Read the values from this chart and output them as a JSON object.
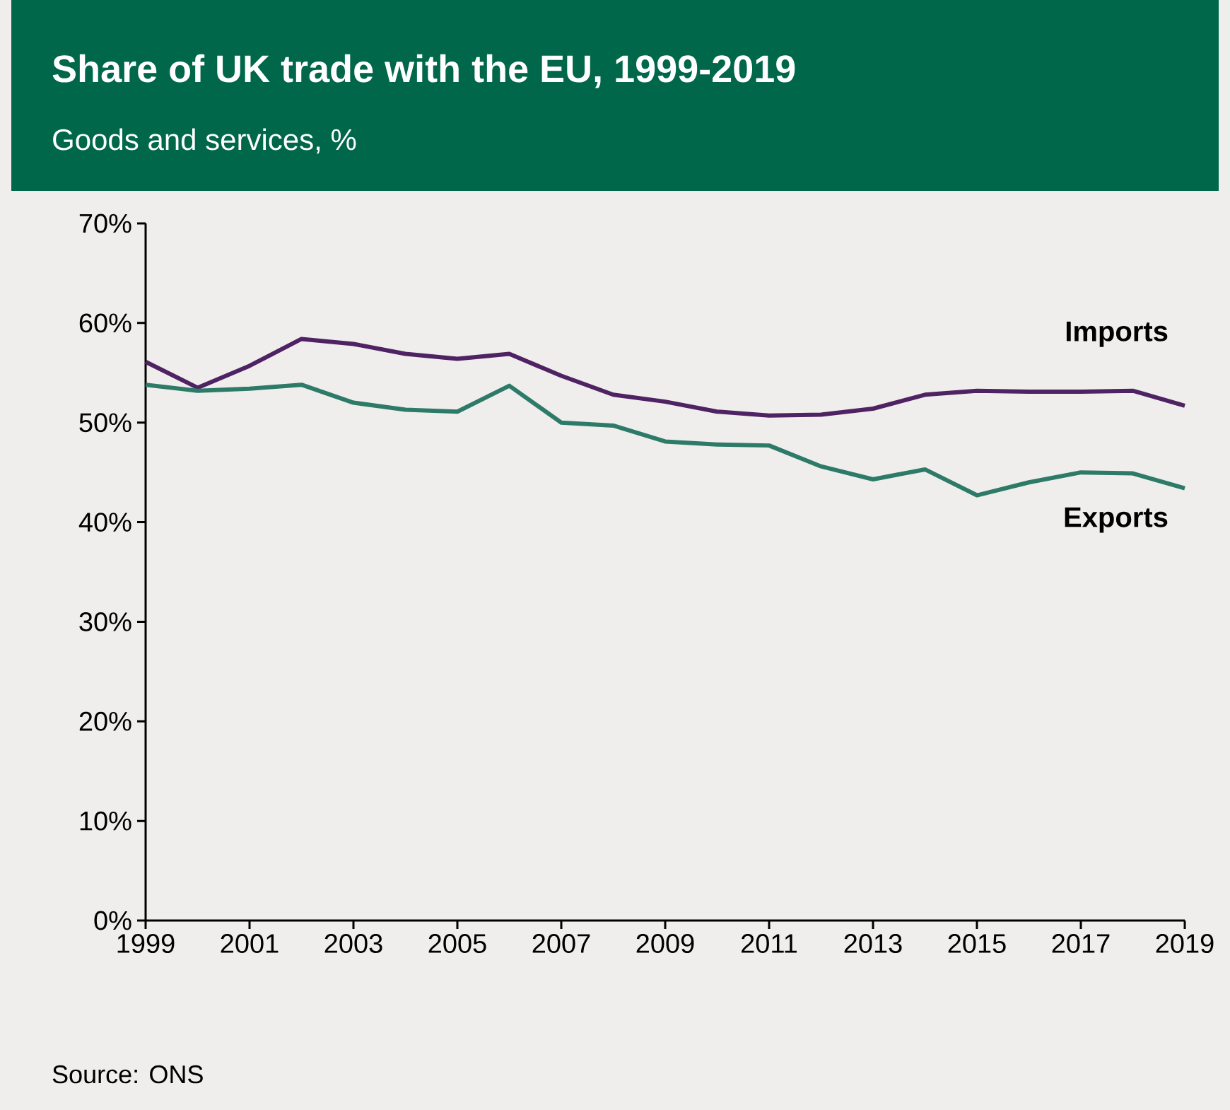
{
  "chart_data": {
    "type": "line",
    "title": "Share of UK trade with the EU, 1999-2019",
    "subtitle": "Goods and services, %",
    "x": [
      1999,
      2000,
      2001,
      2002,
      2003,
      2004,
      2005,
      2006,
      2007,
      2008,
      2009,
      2010,
      2011,
      2012,
      2013,
      2014,
      2015,
      2016,
      2017,
      2018,
      2019
    ],
    "series": [
      {
        "name": "Imports",
        "color": "#4f2263",
        "values": [
          56.1,
          53.5,
          55.7,
          58.4,
          57.9,
          56.9,
          56.4,
          56.9,
          54.7,
          52.8,
          52.1,
          51.1,
          50.7,
          50.8,
          51.4,
          52.8,
          53.2,
          53.1,
          53.1,
          53.2,
          51.7
        ]
      },
      {
        "name": "Exports",
        "color": "#2e7a68",
        "values": [
          53.8,
          53.2,
          53.4,
          53.8,
          52.0,
          51.3,
          51.1,
          53.7,
          50.0,
          49.7,
          48.1,
          47.8,
          47.7,
          45.6,
          44.3,
          45.3,
          42.7,
          44.0,
          45.0,
          44.9,
          43.4
        ]
      }
    ],
    "xlim": [
      1999,
      2019
    ],
    "xticks": [
      1999,
      2001,
      2003,
      2005,
      2007,
      2009,
      2011,
      2013,
      2015,
      2017,
      2019
    ],
    "ylim": [
      0,
      70
    ],
    "yticks": [
      {
        "value": 0,
        "label": "0%"
      },
      {
        "value": 10,
        "label": "10%"
      },
      {
        "value": 20,
        "label": "20%"
      },
      {
        "value": 30,
        "label": "30%"
      },
      {
        "value": 40,
        "label": "40%"
      },
      {
        "value": 50,
        "label": "50%"
      },
      {
        "value": 60,
        "label": "60%"
      },
      {
        "value": 70,
        "label": "70%"
      }
    ],
    "grid": false,
    "legend": false,
    "marker": "none",
    "line_style": "solid",
    "annotations": [
      "Source: ONS"
    ]
  }
}
